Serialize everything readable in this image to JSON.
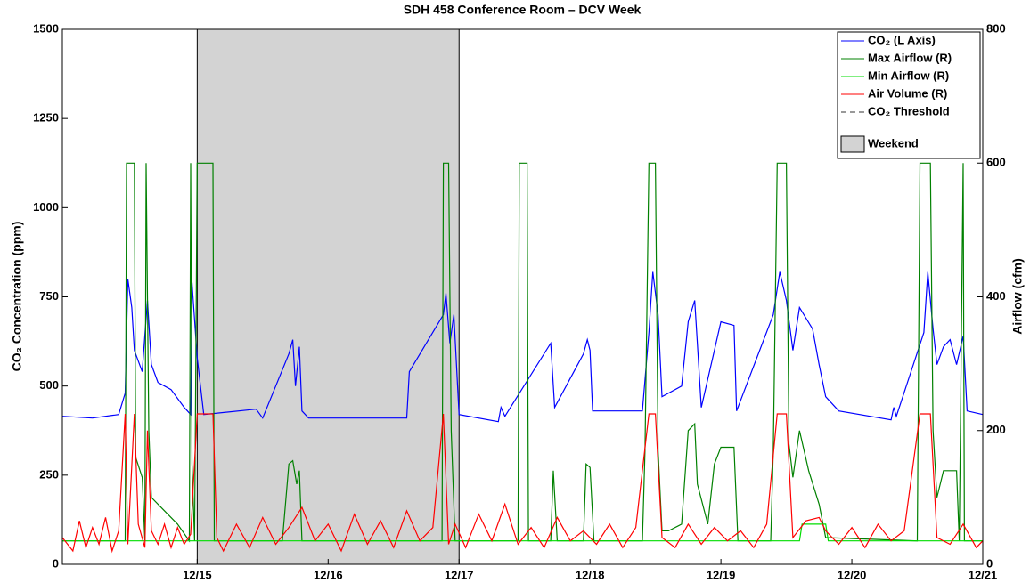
{
  "chart_data": {
    "type": "line",
    "title": "SDH 458 Conference Room – DCV Week",
    "ylabel": "CO₂ Concentration (ppm)",
    "y2label": "Airflow (cfm)",
    "xlim": [
      13.97,
      21
    ],
    "xticks": [
      {
        "value": 15,
        "label": "12/15"
      },
      {
        "value": 16,
        "label": "12/16"
      },
      {
        "value": 17,
        "label": "12/17"
      },
      {
        "value": 18,
        "label": "12/18"
      },
      {
        "value": 19,
        "label": "12/19"
      },
      {
        "value": 20,
        "label": "12/20"
      },
      {
        "value": 21,
        "label": "12/21"
      }
    ],
    "ylim": [
      0,
      1500
    ],
    "yticks": [
      0,
      250,
      500,
      750,
      1000,
      1250,
      1500
    ],
    "y2lim": [
      0,
      800
    ],
    "y2ticks": [
      0,
      200,
      400,
      600,
      800
    ],
    "legend": "upper right",
    "shaded_regions": [
      {
        "name": "Weekend",
        "start": 15,
        "end": 17,
        "color": "#d3d3d3"
      }
    ],
    "threshold": {
      "name": "CO₂ Threshold",
      "value": 800,
      "color": "#333333"
    },
    "series": [
      {
        "name": "CO₂ (L Axis)",
        "color": "#0000ff",
        "axis": "y",
        "x": [
          13.97,
          14.2,
          14.4,
          14.45,
          14.47,
          14.5,
          14.52,
          14.58,
          14.62,
          14.65,
          14.7,
          14.8,
          14.9,
          14.95,
          14.96,
          15.0,
          15.05,
          15.45,
          15.5,
          15.7,
          15.73,
          15.75,
          15.78,
          15.8,
          15.85,
          16.6,
          16.62,
          16.88,
          16.9,
          16.93,
          16.96,
          17.0,
          17.3,
          17.32,
          17.35,
          17.7,
          17.73,
          17.95,
          17.98,
          18.0,
          18.02,
          18.4,
          18.45,
          18.48,
          18.52,
          18.55,
          18.7,
          18.75,
          18.8,
          18.85,
          18.95,
          19.0,
          19.1,
          19.12,
          19.4,
          19.45,
          19.5,
          19.55,
          19.6,
          19.7,
          19.75,
          19.8,
          19.9,
          20.3,
          20.32,
          20.34,
          20.55,
          20.58,
          20.62,
          20.65,
          20.7,
          20.75,
          20.8,
          20.85,
          20.88,
          21.0
        ],
        "values": [
          415,
          410,
          420,
          480,
          800,
          720,
          600,
          540,
          740,
          560,
          510,
          490,
          440,
          420,
          790,
          580,
          420,
          435,
          410,
          590,
          630,
          500,
          610,
          430,
          410,
          410,
          540,
          700,
          760,
          620,
          700,
          420,
          400,
          440,
          415,
          620,
          440,
          590,
          630,
          600,
          430,
          430,
          650,
          820,
          700,
          470,
          500,
          680,
          740,
          440,
          600,
          680,
          670,
          430,
          700,
          820,
          740,
          600,
          720,
          660,
          560,
          470,
          430,
          405,
          440,
          415,
          650,
          820,
          660,
          560,
          610,
          630,
          560,
          640,
          430,
          420
        ]
      },
      {
        "name": "Max Airflow (R)",
        "color": "#008000",
        "axis": "y2",
        "x": [
          13.97,
          14.45,
          14.46,
          14.52,
          14.53,
          14.58,
          14.6,
          14.61,
          14.63,
          14.65,
          14.75,
          14.85,
          14.94,
          14.95,
          14.96,
          14.98,
          15.0,
          15.12,
          15.13,
          15.65,
          15.7,
          15.73,
          15.76,
          15.78,
          15.8,
          16.87,
          16.88,
          16.92,
          16.94,
          16.97,
          17.45,
          17.46,
          17.52,
          17.53,
          17.7,
          17.72,
          17.75,
          17.95,
          17.97,
          18.0,
          18.03,
          18.4,
          18.42,
          18.45,
          18.5,
          18.52,
          18.55,
          18.6,
          18.7,
          18.75,
          18.8,
          18.82,
          18.9,
          18.95,
          19.0,
          19.1,
          19.13,
          19.38,
          19.4,
          19.43,
          19.5,
          19.52,
          19.55,
          19.6,
          19.67,
          19.75,
          19.8,
          20.5,
          20.52,
          20.6,
          20.62,
          20.65,
          20.7,
          20.8,
          20.82,
          20.85,
          20.86,
          21.0
        ],
        "values": [
          35,
          35,
          600,
          600,
          160,
          130,
          35,
          600,
          200,
          100,
          80,
          60,
          35,
          600,
          150,
          35,
          600,
          600,
          35,
          35,
          150,
          155,
          120,
          140,
          35,
          35,
          600,
          600,
          200,
          35,
          35,
          600,
          600,
          35,
          35,
          140,
          35,
          35,
          150,
          145,
          35,
          35,
          170,
          600,
          600,
          170,
          50,
          50,
          60,
          200,
          210,
          120,
          60,
          150,
          175,
          175,
          35,
          35,
          170,
          600,
          600,
          180,
          130,
          200,
          140,
          90,
          40,
          35,
          600,
          600,
          200,
          100,
          140,
          140,
          35,
          600,
          35,
          35
        ]
      },
      {
        "name": "Min Airflow (R)",
        "color": "#00dd00",
        "axis": "y2",
        "x": [
          13.97,
          19.6,
          19.62,
          19.8,
          19.82,
          21.0
        ],
        "values": [
          35,
          35,
          60,
          60,
          35,
          35
        ]
      },
      {
        "name": "Air Volume (R)",
        "color": "#ff0000",
        "axis": "y2",
        "x": [
          13.97,
          14.05,
          14.1,
          14.15,
          14.2,
          14.25,
          14.3,
          14.35,
          14.4,
          14.45,
          14.47,
          14.52,
          14.55,
          14.6,
          14.62,
          14.65,
          14.7,
          14.75,
          14.8,
          14.85,
          14.9,
          14.95,
          15.0,
          15.05,
          15.12,
          15.15,
          15.2,
          15.3,
          15.4,
          15.5,
          15.6,
          15.7,
          15.8,
          15.9,
          16.0,
          16.1,
          16.2,
          16.3,
          16.4,
          16.5,
          16.6,
          16.7,
          16.8,
          16.88,
          16.92,
          16.97,
          17.05,
          17.15,
          17.25,
          17.35,
          17.45,
          17.55,
          17.65,
          17.75,
          17.85,
          17.95,
          18.05,
          18.15,
          18.25,
          18.35,
          18.45,
          18.5,
          18.55,
          18.65,
          18.75,
          18.85,
          18.95,
          19.05,
          19.15,
          19.25,
          19.35,
          19.43,
          19.5,
          19.55,
          19.65,
          19.75,
          19.8,
          19.9,
          20.0,
          20.1,
          20.2,
          20.3,
          20.4,
          20.52,
          20.6,
          20.65,
          20.75,
          20.85,
          20.95,
          21.0
        ],
        "values": [
          40,
          20,
          65,
          25,
          55,
          30,
          70,
          20,
          50,
          225,
          30,
          225,
          60,
          25,
          200,
          50,
          30,
          60,
          25,
          55,
          30,
          45,
          225,
          225,
          225,
          40,
          20,
          60,
          25,
          70,
          30,
          55,
          85,
          35,
          60,
          20,
          75,
          30,
          65,
          25,
          80,
          35,
          55,
          225,
          30,
          60,
          25,
          75,
          35,
          90,
          30,
          55,
          25,
          70,
          35,
          50,
          30,
          60,
          25,
          55,
          225,
          225,
          40,
          25,
          60,
          30,
          55,
          35,
          50,
          25,
          60,
          225,
          225,
          40,
          65,
          70,
          50,
          30,
          55,
          25,
          60,
          35,
          50,
          225,
          225,
          40,
          30,
          60,
          25,
          35
        ]
      }
    ]
  }
}
